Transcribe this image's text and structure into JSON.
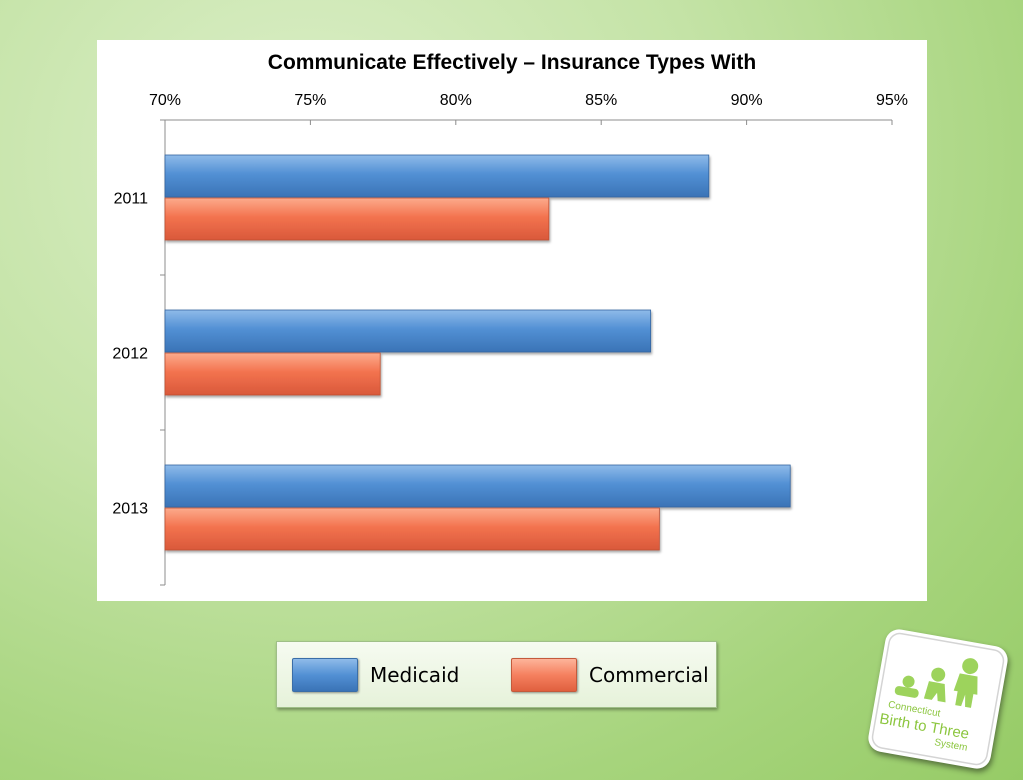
{
  "chart_data": {
    "type": "bar",
    "orientation": "horizontal",
    "title": "Communicate Effectively – Insurance Types With",
    "categories": [
      "2011",
      "2012",
      "2013"
    ],
    "series": [
      {
        "name": "Medicaid",
        "values": [
          88.7,
          86.7,
          91.5
        ],
        "color": "#4f8ccf"
      },
      {
        "name": "Commercial",
        "values": [
          83.2,
          77.4,
          87.0
        ],
        "color": "#f0704d"
      }
    ],
    "xlim": [
      70,
      95
    ],
    "xticks": [
      "70%",
      "75%",
      "80%",
      "85%",
      "90%",
      "95%"
    ],
    "xaxis_position": "top",
    "grid": false,
    "legend_position": "bottom"
  },
  "legend": {
    "items": [
      {
        "label": "Medicaid",
        "color": "#4f8ccf"
      },
      {
        "label": "Commercial",
        "color": "#f08060"
      }
    ]
  },
  "logo": {
    "line1": "Connecticut",
    "line2": "Birth to Three",
    "line3": "System",
    "color": "#8cc63f"
  }
}
